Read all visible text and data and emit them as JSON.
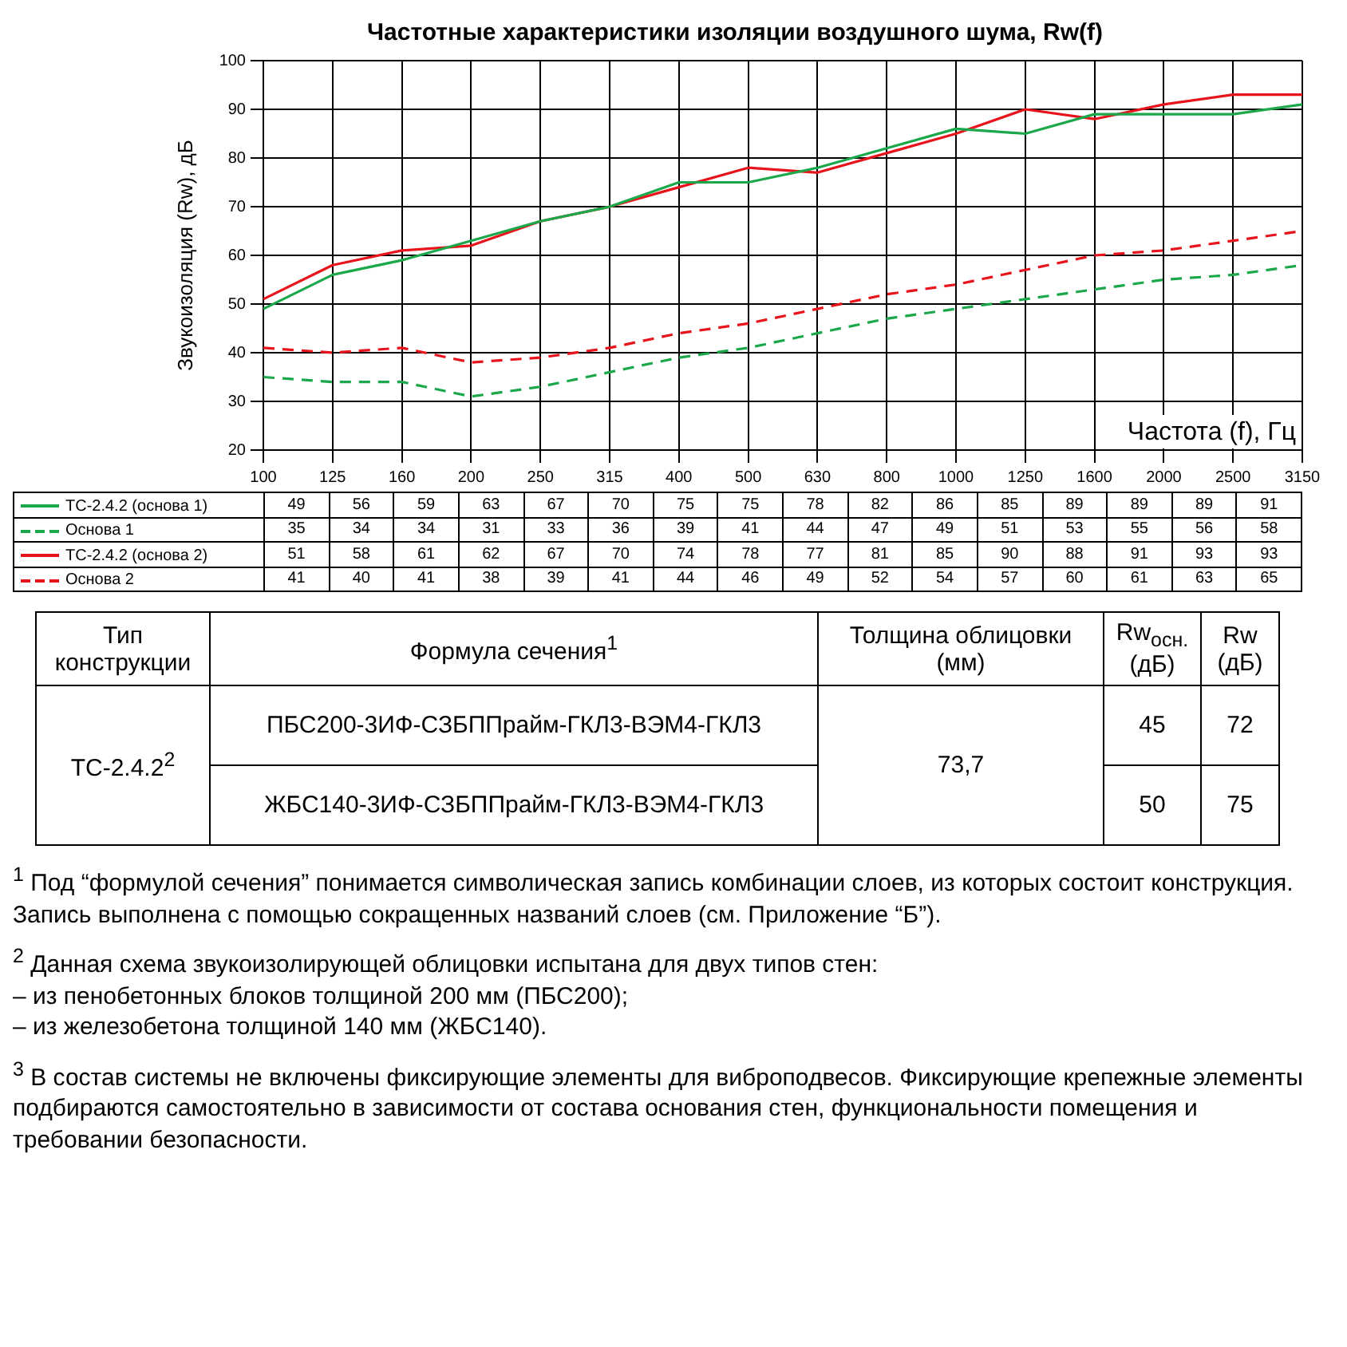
{
  "chart_data": {
    "type": "line",
    "title": "Частотные характеристики изоляции воздушного шума, Rw(f)",
    "xlabel": "Частота (f), Гц",
    "ylabel": "Звукоизоляция (Rw), дБ",
    "categories": [
      "100",
      "125",
      "160",
      "200",
      "250",
      "315",
      "400",
      "500",
      "630",
      "800",
      "1000",
      "1250",
      "1600",
      "2000",
      "2500",
      "3150"
    ],
    "series": [
      {
        "name": "ТС-2.4.2 (основа 1)",
        "color": "#1aa84a",
        "line_style": "solid",
        "values": [
          49,
          56,
          59,
          63,
          67,
          70,
          75,
          75,
          78,
          82,
          86,
          85,
          89,
          89,
          89,
          91
        ]
      },
      {
        "name": "Основа 1",
        "color": "#1aa84a",
        "line_style": "dashed",
        "values": [
          35,
          34,
          34,
          31,
          33,
          36,
          39,
          41,
          44,
          47,
          49,
          51,
          53,
          55,
          56,
          58
        ]
      },
      {
        "name": "ТС-2.4.2 (основа 2)",
        "color": "#e8141c",
        "line_style": "solid",
        "values": [
          51,
          58,
          61,
          62,
          67,
          70,
          74,
          78,
          77,
          81,
          85,
          90,
          88,
          91,
          93,
          93
        ]
      },
      {
        "name": "Основа 2",
        "color": "#e8141c",
        "line_style": "dashed",
        "values": [
          41,
          40,
          41,
          38,
          39,
          41,
          44,
          46,
          49,
          52,
          54,
          57,
          60,
          61,
          63,
          65
        ]
      }
    ],
    "ylim": [
      20,
      100
    ],
    "yticks": [
      20,
      30,
      40,
      50,
      60,
      70,
      80,
      90,
      100
    ],
    "grid": true,
    "legend": "bottom",
    "marker": "none",
    "data_labels": true,
    "annotations": [
      "Тип конструкции",
      "Формула сечения$^{1}$",
      "Толщина облицовки (мм)",
      "Rw$_{осн.}$ (дБ)",
      "Rw (дБ)",
      "ТС-2.4.2$^{2}$",
      "ПБС200-3ИФ-СЗБППрайм-ГКЛ3-ВЭМ4-ГКЛ3",
      "ЖБС140-3ИФ-СЗБППрайм-ГКЛ3-ВЭМ4-ГКЛ3",
      "73,7",
      "45",
      "72",
      "50",
      "75",
      "$^{1}$ Под “формулой сечения” понимается символическая запись комбинации слоев, из которых состоит конструкция. Запись выполнена с помощью сокращенных названий слоев (см. Приложение “Б”).",
      "$^{2}$ Данная схема звукоизолирующей облицовки испытана для двух типов стен:\n– из пенобетонных блоков толщиной 200 мм (ПБС200);\n– из железобетона толщиной 140 мм (ЖБС140).",
      "$^{3}$ В состав системы не включены фиксирующие элементы для виброподвесов. Фиксирующие крепежные элементы подбираются самостоятельно в зависимости от состава основания стен, функциональности помещения и требовании безопасности."
    ]
  }
}
